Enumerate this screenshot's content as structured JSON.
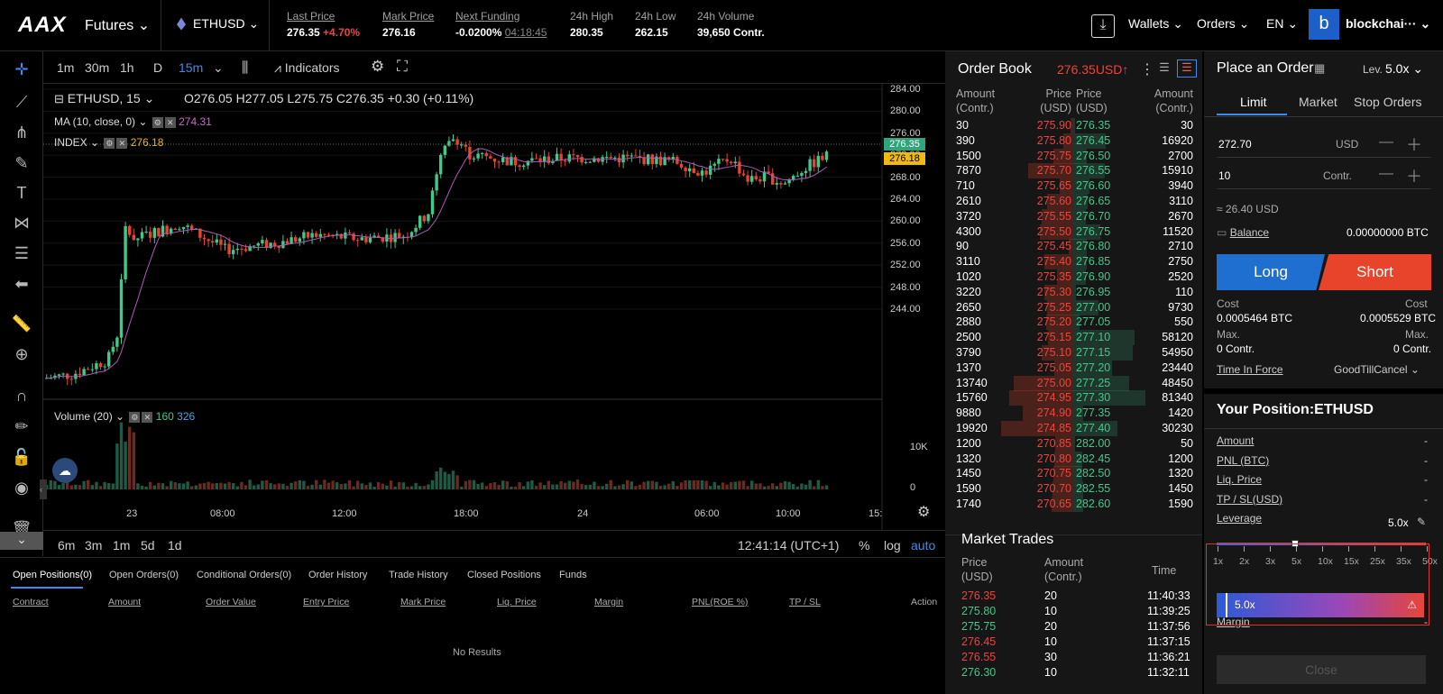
{
  "header": {
    "logo": "AAX",
    "product": "Futures ⌄",
    "symbol": "ETHUSD ⌄",
    "stats": [
      {
        "label": "Last Price",
        "value": "276.35",
        "extra": "+4.70%"
      },
      {
        "label": "Mark Price",
        "value": "276.16"
      },
      {
        "label": "Next Funding",
        "value": "-0.0200%",
        "extra": "04:18:45"
      },
      {
        "label": "24h High",
        "value": "280.35"
      },
      {
        "label": "24h Low",
        "value": "262.15"
      },
      {
        "label": "24h Volume",
        "value": "39,650 Contr."
      }
    ],
    "nav": {
      "wallets": "Wallets ⌄",
      "orders": "Orders ⌄",
      "lang": "EN ⌄",
      "avatar": "b",
      "user": "blockchai··· ⌄"
    }
  },
  "chart_toolbar": {
    "intervals": [
      "1m",
      "30m",
      "1h",
      "D",
      "15m"
    ],
    "indicators": "Indicators"
  },
  "chart_legend": {
    "symbol": "ETHUSD, 15 ⌄",
    "ohlc": "O276.05  H277.05  L275.75  C276.35  +0.30 (+0.11%)",
    "ma_label": "MA (10, close, 0) ⌄",
    "ma_value": "274.31",
    "index_label": "INDEX ⌄",
    "index_value": "276.18",
    "volume_label": "Volume (20) ⌄",
    "vol_v1": "160",
    "vol_v2": "326"
  },
  "price_axis": [
    "284.00",
    "280.00",
    "276.00",
    "272.00",
    "268.00",
    "264.00",
    "260.00",
    "256.00",
    "252.00",
    "248.00",
    "244.00"
  ],
  "price_tags": {
    "last": "276.35",
    "index": "276.18"
  },
  "volume_axis": [
    "10K",
    "0"
  ],
  "time_axis": [
    "23",
    "08:00",
    "12:00",
    "18:00",
    "24",
    "06:00",
    "10:00",
    "15:"
  ],
  "timeframes": {
    "ranges": [
      "6m",
      "3m",
      "1m",
      "5d",
      "1d"
    ],
    "clock": "12:41:14 (UTC+1)",
    "pct": "%",
    "log": "log",
    "auto": "auto"
  },
  "bottom": {
    "tabs": [
      "Open Positions(0)",
      "Open Orders(0)",
      "Conditional Orders(0)",
      "Order History",
      "Trade History",
      "Closed Positions",
      "Funds"
    ],
    "columns": [
      "Contract",
      "Amount",
      "Order Value",
      "Entry Price",
      "Mark Price",
      "Liq. Price",
      "Margin",
      "PNL(ROE %)",
      "TP / SL",
      "Action"
    ],
    "empty": "No Results"
  },
  "order_book": {
    "title": "Order Book",
    "last": "276.35USD↑",
    "h_amount": "Amount (Contr.)",
    "h_price": "Price (USD)",
    "rows": [
      [
        "30",
        "275.90",
        "276.35",
        "30"
      ],
      [
        "390",
        "275.80",
        "276.45",
        "16920"
      ],
      [
        "1500",
        "275.75",
        "276.50",
        "2700"
      ],
      [
        "7870",
        "275.70",
        "276.55",
        "15910"
      ],
      [
        "710",
        "275.65",
        "276.60",
        "3940"
      ],
      [
        "2610",
        "275.60",
        "276.65",
        "3110"
      ],
      [
        "3720",
        "275.55",
        "276.70",
        "2670"
      ],
      [
        "4300",
        "275.50",
        "276.75",
        "11520"
      ],
      [
        "90",
        "275.45",
        "276.80",
        "2710"
      ],
      [
        "3110",
        "275.40",
        "276.85",
        "2750"
      ],
      [
        "1020",
        "275.35",
        "276.90",
        "2520"
      ],
      [
        "3220",
        "275.30",
        "276.95",
        "110"
      ],
      [
        "2650",
        "275.25",
        "277.00",
        "9730"
      ],
      [
        "2880",
        "275.20",
        "277.05",
        "550"
      ],
      [
        "2500",
        "275.15",
        "277.10",
        "58120"
      ],
      [
        "3790",
        "275.10",
        "277.15",
        "54950"
      ],
      [
        "1370",
        "275.05",
        "277.20",
        "23440"
      ],
      [
        "13740",
        "275.00",
        "277.25",
        "48450"
      ],
      [
        "15760",
        "274.95",
        "277.30",
        "81340"
      ],
      [
        "9880",
        "274.90",
        "277.35",
        "1420"
      ],
      [
        "19920",
        "274.85",
        "277.40",
        "30230"
      ],
      [
        "1200",
        "270.85",
        "282.00",
        "50"
      ],
      [
        "1320",
        "270.80",
        "282.45",
        "1200"
      ],
      [
        "1450",
        "270.75",
        "282.50",
        "1320"
      ],
      [
        "1590",
        "270.70",
        "282.55",
        "1450"
      ],
      [
        "1740",
        "270.65",
        "282.60",
        "1590"
      ]
    ]
  },
  "market_trades": {
    "title": "Market Trades",
    "h_price": "Price (USD)",
    "h_amount": "Amount (Contr.)",
    "h_time": "Time",
    "rows": [
      {
        "price": "276.35",
        "amount": "20",
        "time": "11:40:33",
        "side": "sell"
      },
      {
        "price": "275.80",
        "amount": "10",
        "time": "11:39:25",
        "side": "buy"
      },
      {
        "price": "275.75",
        "amount": "20",
        "time": "11:37:56",
        "side": "buy"
      },
      {
        "price": "276.45",
        "amount": "10",
        "time": "11:37:15",
        "side": "sell"
      },
      {
        "price": "276.55",
        "amount": "30",
        "time": "11:36:21",
        "side": "sell"
      },
      {
        "price": "276.30",
        "amount": "10",
        "time": "11:32:11",
        "side": "buy"
      }
    ]
  },
  "order_panel": {
    "title": "Place an Order",
    "lev_label": "Lev.",
    "lev_value": "5.0x ⌄",
    "tabs": [
      "Limit",
      "Market",
      "Stop Orders"
    ],
    "price": "272.70",
    "price_unit": "USD",
    "qty": "10",
    "qty_unit": "Contr.",
    "approx": "≈ 26.40  USD",
    "balance_label": "Balance",
    "balance_value": "0.00000000 BTC",
    "long": "Long",
    "short": "Short",
    "cost_label": "Cost",
    "cost_long": "0.0005464 BTC",
    "cost_short": "0.0005529 BTC",
    "max_label": "Max.",
    "max_long": "0 Contr.",
    "max_short": "0 Contr.",
    "tif_label": "Time In Force",
    "tif_value": "GoodTillCancel ⌄",
    "position_title": "Your Position:ETHUSD",
    "pos_rows": [
      [
        "Amount",
        "-"
      ],
      [
        "PNL (BTC)",
        "-"
      ],
      [
        "Liq. Price",
        "-"
      ],
      [
        "TP / SL(USD)",
        "-"
      ]
    ],
    "leverage_label": "Leverage",
    "leverage_value": "5.0x",
    "lev_ticks": [
      "1x",
      "2x",
      "3x",
      "5x",
      "10x",
      "15x",
      "25x",
      "35x",
      "50x"
    ],
    "lev_bar": "5.0x",
    "margin_label": "Margin",
    "margin_value": "-",
    "close": "Close"
  },
  "chart_data": {
    "type": "candlestick",
    "ylim": [
      242,
      285
    ],
    "series_hint": "ETHUSD 15m candles with MA(10) and Volume(20)",
    "last": 276.35
  }
}
